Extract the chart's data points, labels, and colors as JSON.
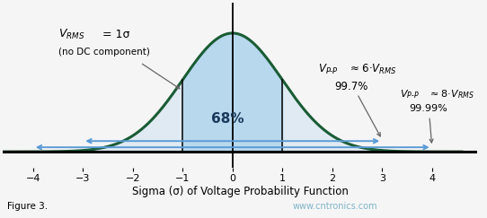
{
  "title": "Sigma (σ) of Voltage Probability Function",
  "figure_label": "Figure 3.",
  "watermark": "www.cntronics.com",
  "xlim": [
    -4.6,
    4.9
  ],
  "ylim": [
    -0.055,
    0.5
  ],
  "xticks": [
    -4,
    -3,
    -2,
    -1,
    0,
    1,
    2,
    3,
    4
  ],
  "curve_color": "#1a6b3a",
  "fill_color": "#b8d8ee",
  "fill_alpha": 1.0,
  "arrow_color": "#5b9bd5",
  "line_color": "black",
  "text_68": "68%",
  "text_pp6": "Vₙ₋ₙ ≈ 6·Vᴬᴹᴸ",
  "text_pp6_pct": "99.7%",
  "text_pp8_pct": "99.99%",
  "background_color": "#f5f5f5"
}
